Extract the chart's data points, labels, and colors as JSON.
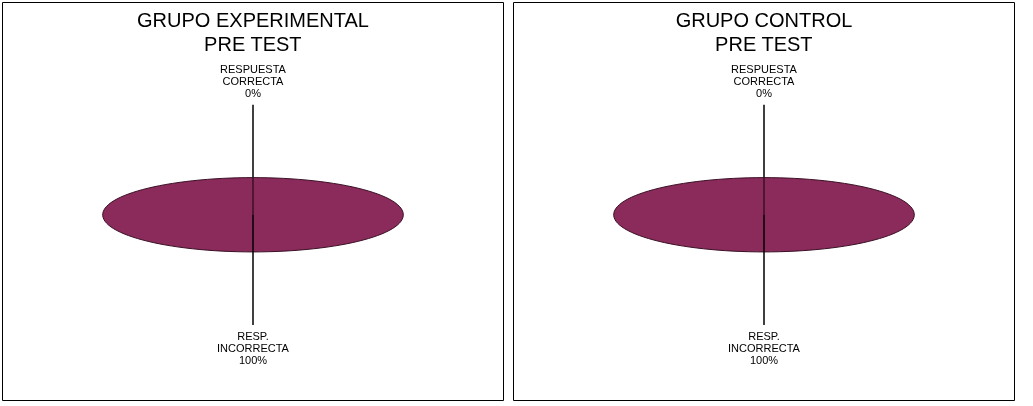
{
  "chart_data": [
    {
      "type": "pie",
      "title": "GRUPO EXPERIMENTAL",
      "subtitle": "PRE TEST",
      "categories": [
        "RESPUESTA CORRECTA",
        "RESP. INCORRECTA"
      ],
      "values": [
        0,
        100
      ],
      "value_labels": [
        "0%",
        "100%"
      ],
      "colors": [
        "#8b2b5b",
        "#8b2b5b"
      ],
      "legend": false
    },
    {
      "type": "pie",
      "title": "GRUPO CONTROL",
      "subtitle": "PRE TEST",
      "categories": [
        "RESPUESTA CORRECTA",
        "RESP. INCORRECTA"
      ],
      "values": [
        0,
        100
      ],
      "value_labels": [
        "0%",
        "100%"
      ],
      "colors": [
        "#8b2b5b",
        "#8b2b5b"
      ],
      "legend": false
    }
  ]
}
